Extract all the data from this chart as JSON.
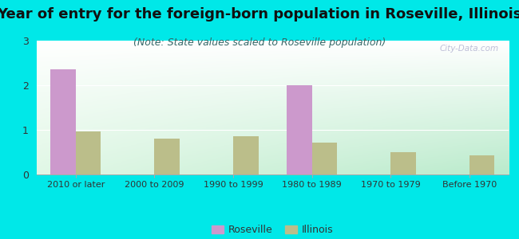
{
  "title": "Year of entry for the foreign-born population in Roseville, Illinois",
  "subtitle": "(Note: State values scaled to Roseville population)",
  "categories": [
    "2010 or later",
    "2000 to 2009",
    "1990 to 1999",
    "1980 to 1989",
    "1970 to 1979",
    "Before 1970"
  ],
  "roseville": [
    2.35,
    0,
    0,
    2.0,
    0,
    0
  ],
  "illinois": [
    0.97,
    0.8,
    0.85,
    0.72,
    0.5,
    0.42
  ],
  "roseville_color": "#cc99cc",
  "illinois_color": "#bbbe8a",
  "background_outer": "#00e8e8",
  "ylim": [
    0,
    3
  ],
  "yticks": [
    0,
    1,
    2,
    3
  ],
  "bar_width": 0.32,
  "legend_labels": [
    "Roseville",
    "Illinois"
  ],
  "title_fontsize": 13,
  "subtitle_fontsize": 9,
  "tick_fontsize": 8,
  "ytick_fontsize": 9
}
